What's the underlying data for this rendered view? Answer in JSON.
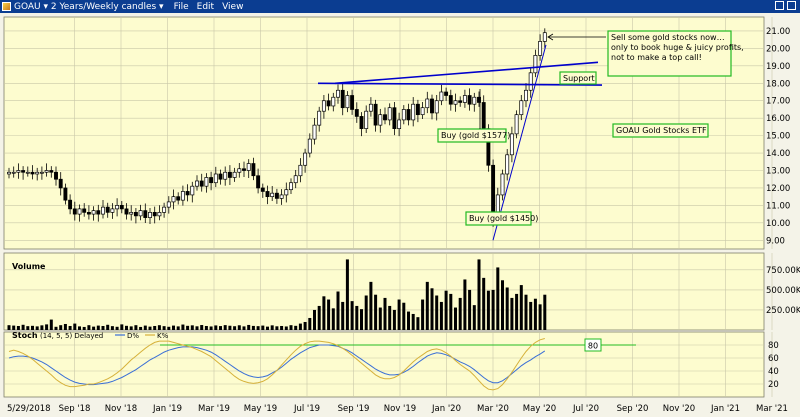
{
  "window": {
    "title": "GOAU ▾ 2 Years/Weekly candles ▾",
    "menu": [
      "File",
      "Edit",
      "View"
    ],
    "icons": [
      "app-icon",
      "restore-icon",
      "close-icon"
    ]
  },
  "colors": {
    "background": "#fdfccf",
    "grid": "#c9c7a8",
    "trendline": "#0000cc",
    "annotation_border": "#22bb22",
    "stoch_k": "#d6b13a",
    "stoch_d": "#3a6fd6",
    "level_line": "#22bb22",
    "volume": "#000000",
    "titlebar": "#0b3d91"
  },
  "chart_data": [
    {
      "type": "candlestick",
      "panel": "price",
      "x_ticks": [
        "5/29/2018",
        "Sep '18",
        "Nov '18",
        "Jan '19",
        "Mar '19",
        "May '19",
        "Jul '19",
        "Sep '19",
        "Nov '19",
        "Jan '20",
        "Mar '20",
        "May '20",
        "Jul '20",
        "Sep '20",
        "Nov '20",
        "Jan '21",
        "Mar '21"
      ],
      "y_ticks": [
        "9.00",
        "10.00",
        "11.00",
        "12.00",
        "13.00",
        "14.00",
        "15.00",
        "16.00",
        "17.00",
        "18.00",
        "19.00",
        "20.00",
        "21.00"
      ],
      "ylim": [
        8.5,
        21.8
      ],
      "closes": [
        12.9,
        12.9,
        13.0,
        12.9,
        12.9,
        12.8,
        12.9,
        12.9,
        13.0,
        12.9,
        12.5,
        12.0,
        11.3,
        10.8,
        10.5,
        10.8,
        10.6,
        10.5,
        10.7,
        10.5,
        10.9,
        10.6,
        10.8,
        11.0,
        10.8,
        10.5,
        10.6,
        10.4,
        10.7,
        10.3,
        10.6,
        10.4,
        10.6,
        10.9,
        11.2,
        11.5,
        11.3,
        11.8,
        11.6,
        12.1,
        12.4,
        12.1,
        12.6,
        12.3,
        12.8,
        12.5,
        12.9,
        12.6,
        12.9,
        13.1,
        13.0,
        13.4,
        12.7,
        12.0,
        11.8,
        11.5,
        11.7,
        11.4,
        11.6,
        11.9,
        12.3,
        12.7,
        13.3,
        14.0,
        14.8,
        15.6,
        16.4,
        17.0,
        16.7,
        17.2,
        17.6,
        16.6,
        17.3,
        16.5,
        16.1,
        15.4,
        16.4,
        16.8,
        15.6,
        16.2,
        15.9,
        16.6,
        15.4,
        15.9,
        16.5,
        15.9,
        16.8,
        16.2,
        16.6,
        17.1,
        16.3,
        17.0,
        17.5,
        17.3,
        16.8,
        17.0,
        16.9,
        17.3,
        16.8,
        17.2,
        16.9,
        15.4,
        13.3,
        10.2,
        11.6,
        12.8,
        13.9,
        15.1,
        16.2,
        17.0,
        17.6,
        18.6,
        19.6,
        20.4,
        20.9
      ],
      "trendlines": [
        {
          "from": [
            "Aug '19",
            18.0
          ],
          "to": [
            "Jul '20",
            19.2
          ]
        },
        {
          "from": [
            "Jul '19",
            18.0
          ],
          "to": [
            "Jul '20",
            17.9
          ]
        },
        {
          "from": [
            "Mar '20",
            9.0
          ],
          "to": [
            "Jun '20",
            20.2
          ]
        }
      ],
      "annotations": [
        "Sell some gold stocks now…\nonly to book huge & juicy profits,\nnot to make a top call!",
        "Support",
        "Buy (gold $1577)",
        "Buy (gold $1450)",
        "GOAU Gold Stocks ETF"
      ]
    },
    {
      "type": "bar",
      "panel": "volume",
      "title": "Volume",
      "y_ticks": [
        "250.00K",
        "500.00K",
        "750.00K"
      ],
      "ylim": [
        0,
        960000
      ],
      "values": [
        60000,
        55000,
        50000,
        65000,
        48000,
        52000,
        45000,
        58000,
        70000,
        130000,
        40000,
        60000,
        75000,
        50000,
        80000,
        45000,
        38000,
        60000,
        42000,
        55000,
        50000,
        65000,
        48000,
        40000,
        70000,
        52000,
        45000,
        60000,
        38000,
        55000,
        42000,
        50000,
        60000,
        48000,
        40000,
        55000,
        45000,
        68000,
        52000,
        58000,
        46000,
        62000,
        50000,
        44000,
        57000,
        49000,
        61000,
        53000,
        47000,
        59000,
        45000,
        63000,
        51000,
        48000,
        55000,
        42000,
        58000,
        46000,
        50000,
        44000,
        60000,
        52000,
        80000,
        100000,
        150000,
        250000,
        300000,
        420000,
        380000,
        270000,
        480000,
        350000,
        880000,
        360000,
        300000,
        260000,
        430000,
        600000,
        440000,
        280000,
        400000,
        300000,
        250000,
        380000,
        340000,
        230000,
        200000,
        160000,
        380000,
        600000,
        520000,
        430000,
        350000,
        490000,
        450000,
        280000,
        400000,
        630000,
        500000,
        310000,
        880000,
        650000,
        490000,
        500000,
        780000,
        620000,
        530000,
        400000,
        450000,
        560000,
        440000,
        350000,
        390000,
        320000,
        440000
      ]
    },
    {
      "type": "line",
      "panel": "stochastic",
      "title": "Stoch",
      "legend": "(14, 5, 5) Delayed",
      "y_ticks": [
        "20",
        "40",
        "60",
        "80"
      ],
      "ylim": [
        0,
        100
      ],
      "level_label": "80",
      "level": 80,
      "series": [
        {
          "name": "D%",
          "values": [
            60,
            62,
            63,
            63,
            62,
            60,
            57,
            54,
            50,
            45,
            40,
            35,
            30,
            26,
            23,
            21,
            20,
            19,
            19,
            20,
            21,
            22,
            24,
            27,
            30,
            34,
            38,
            42,
            47,
            52,
            57,
            61,
            65,
            69,
            72,
            74,
            76,
            77,
            77,
            77,
            76,
            74,
            72,
            69,
            65,
            60,
            55,
            50,
            45,
            40,
            36,
            33,
            31,
            30,
            31,
            33,
            37,
            41,
            46,
            52,
            58,
            63,
            68,
            72,
            76,
            78,
            80,
            80,
            80,
            79,
            78,
            75,
            72,
            68,
            63,
            58,
            53,
            48,
            43,
            39,
            36,
            34,
            34,
            35,
            38,
            42,
            47,
            53,
            58,
            63,
            66,
            68,
            67,
            65,
            62,
            58,
            54,
            51,
            47,
            42,
            36,
            30,
            25,
            22,
            22,
            25,
            30,
            36,
            42,
            48,
            53,
            57,
            62,
            66,
            71
          ]
        },
        {
          "name": "K%",
          "values": [
            70,
            72,
            70,
            67,
            63,
            58,
            52,
            46,
            40,
            34,
            27,
            22,
            18,
            16,
            16,
            17,
            18,
            20,
            20,
            22,
            25,
            28,
            32,
            37,
            43,
            50,
            57,
            63,
            69,
            75,
            80,
            84,
            86,
            86,
            86,
            84,
            82,
            80,
            78,
            76,
            73,
            70,
            66,
            62,
            56,
            50,
            44,
            38,
            32,
            27,
            24,
            22,
            21,
            22,
            24,
            28,
            34,
            41,
            49,
            57,
            65,
            72,
            78,
            82,
            85,
            86,
            86,
            85,
            84,
            82,
            79,
            75,
            70,
            64,
            58,
            52,
            46,
            40,
            34,
            30,
            28,
            28,
            30,
            34,
            40,
            47,
            54,
            60,
            65,
            70,
            73,
            74,
            72,
            68,
            63,
            56,
            50,
            45,
            40,
            33,
            25,
            17,
            12,
            11,
            13,
            19,
            28,
            38,
            49,
            60,
            70,
            78,
            84,
            88,
            90
          ]
        }
      ]
    }
  ]
}
